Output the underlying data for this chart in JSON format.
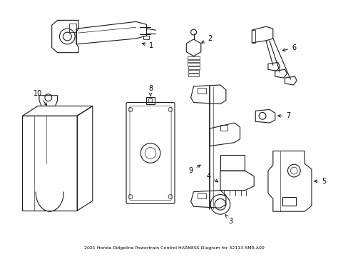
{
  "title": "2021 Honda Ridgeline Powertrain Control HARNESS Diagram for 32113-5MR-A00",
  "background_color": "#ffffff",
  "line_color": "#1a1a1a",
  "line_width": 0.8,
  "fig_width": 4.89,
  "fig_height": 3.6,
  "dpi": 100
}
